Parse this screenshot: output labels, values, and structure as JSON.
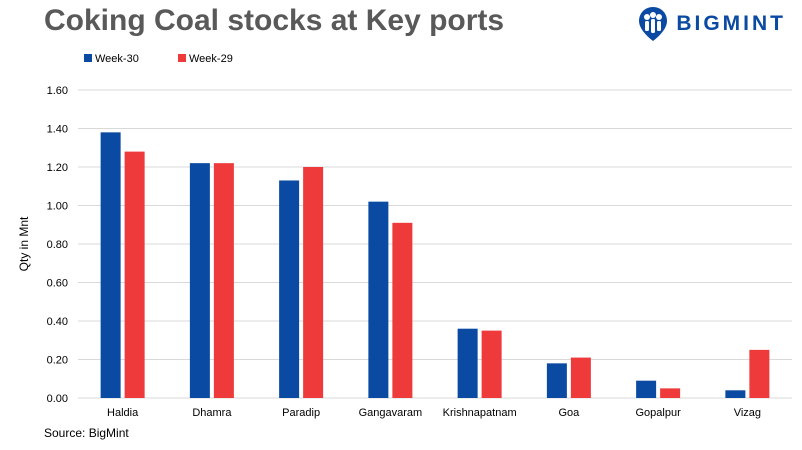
{
  "header": {
    "title": "Coking Coal stocks at Key ports",
    "logo_text": "BIGMINT"
  },
  "footer": {
    "source": "Source: BigMint"
  },
  "colors": {
    "week30": "#0b4aa2",
    "week29": "#ee3a3a",
    "grid": "#d9d9d9",
    "title": "#595959",
    "brand": "#0b4aa2"
  },
  "chart_data": {
    "type": "bar",
    "title": "Coking Coal stocks at Key ports",
    "xlabel": "",
    "ylabel": "Qty in Mnt",
    "ylim": [
      0,
      1.6
    ],
    "yticks": [
      "0.00",
      "0.20",
      "0.40",
      "0.60",
      "0.80",
      "1.00",
      "1.20",
      "1.40",
      "1.60"
    ],
    "grid": true,
    "legend_position": "top-left",
    "categories": [
      "Haldia",
      "Dhamra",
      "Paradip",
      "Gangavaram",
      "Krishnapatnam",
      "Goa",
      "Gopalpur",
      "Vizag"
    ],
    "series": [
      {
        "name": "Week-30",
        "values": [
          1.38,
          1.22,
          1.13,
          1.02,
          0.36,
          0.18,
          0.09,
          0.04
        ]
      },
      {
        "name": "Week-29",
        "values": [
          1.28,
          1.22,
          1.2,
          0.91,
          0.35,
          0.21,
          0.05,
          0.25
        ]
      }
    ]
  }
}
